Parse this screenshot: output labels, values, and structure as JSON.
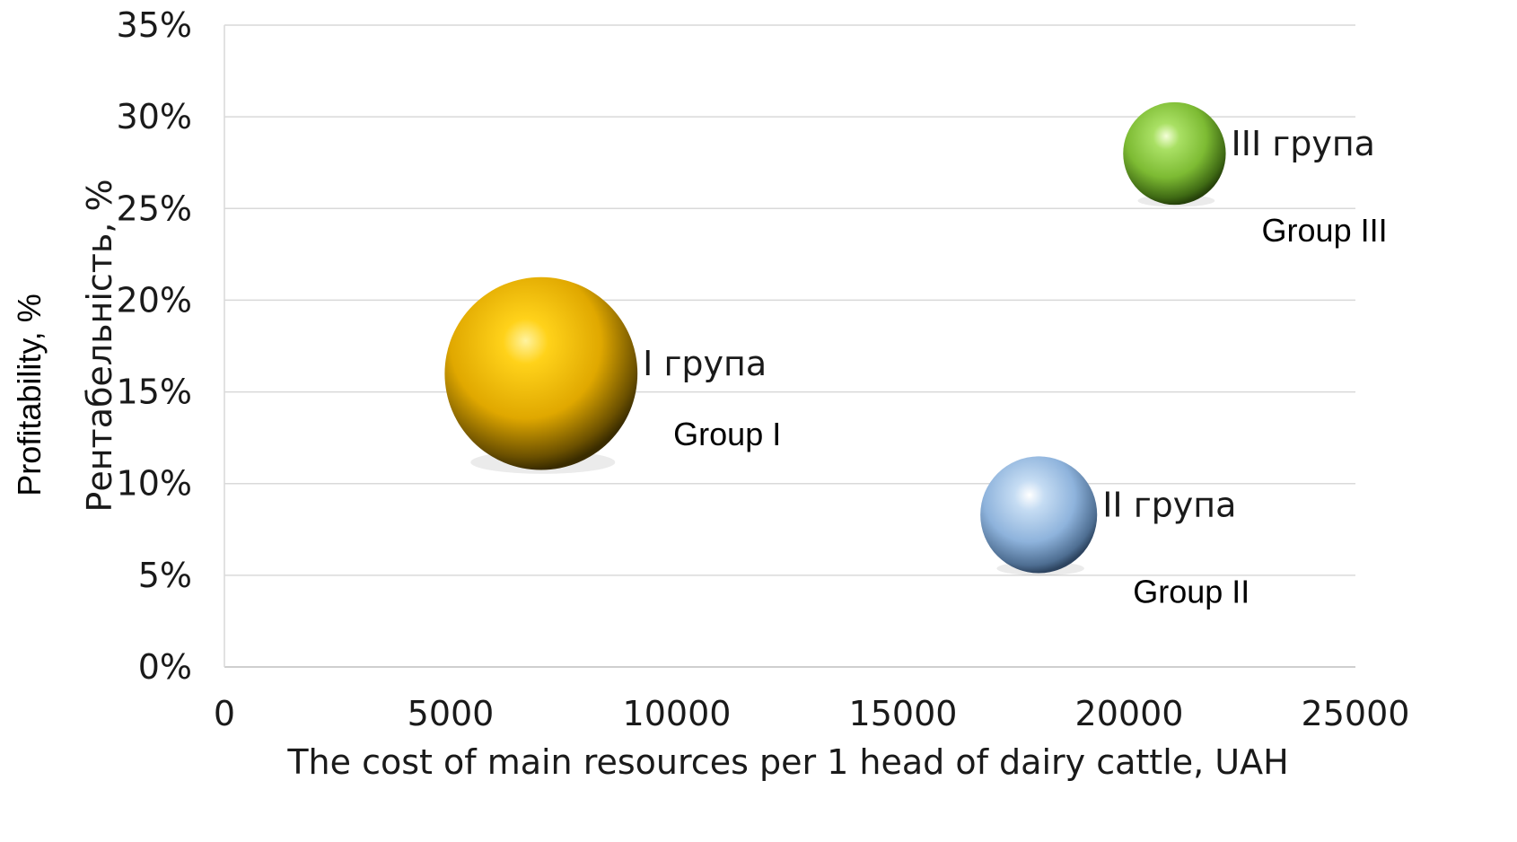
{
  "chart_data": {
    "type": "bubble",
    "title": "",
    "xlabel": "The cost of main resources per 1 head of dairy cattle, UAH",
    "ylabel": "Рентабельність, %",
    "ylabel_en": "Profitability, %",
    "xlim": [
      0,
      25000
    ],
    "ylim": [
      0,
      0.35
    ],
    "x_ticks": [
      "0",
      "5000",
      "10000",
      "15000",
      "20000",
      "25000"
    ],
    "y_ticks": [
      "0%",
      "5%",
      "10%",
      "15%",
      "20%",
      "25%",
      "30%",
      "35%"
    ],
    "grid": true,
    "series": [
      {
        "label": "I група",
        "label_en": "Group I",
        "x": 7000,
        "y": 0.16,
        "size": 3.0,
        "color": "#f2b700"
      },
      {
        "label": "II група",
        "label_en": "Group II",
        "x": 18000,
        "y": 0.083,
        "size": 1.1,
        "color": "#8db3e2"
      },
      {
        "label": "III група",
        "label_en": "Group III",
        "x": 21000,
        "y": 0.28,
        "size": 0.85,
        "color": "#8cc63f"
      }
    ]
  }
}
